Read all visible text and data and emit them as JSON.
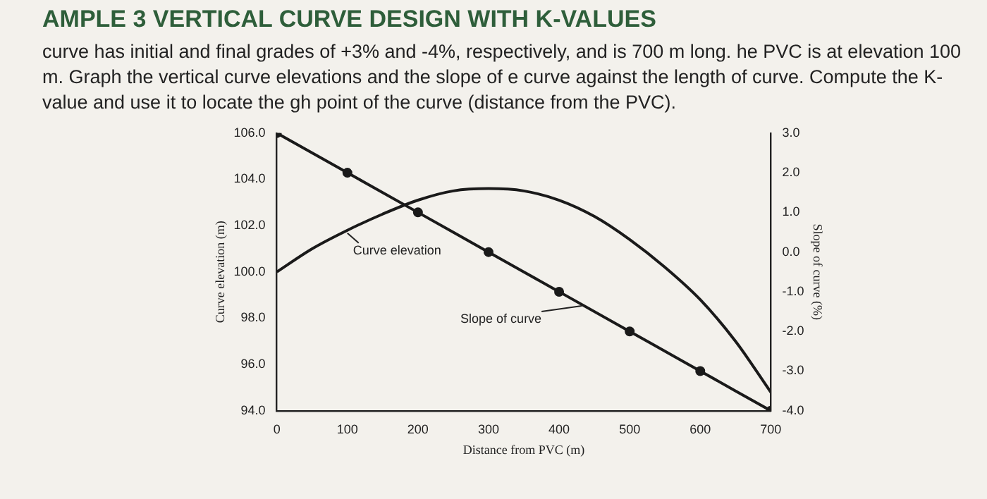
{
  "chart_data": {
    "type": "line",
    "title": "AMPLE 3 VERTICAL CURVE DESIGN WITH K-VALUES",
    "subtitle": "curve has initial and final grades of +3% and -4%, respectively, and is 700 m long. he PVC is at elevation 100 m. Graph the vertical curve elevations and the slope of e curve against the length of curve. Compute the K-value and use it to locate the gh point of the curve (distance from the PVC).",
    "xlabel": "Distance from PVC (m)",
    "ylabel": "Curve elevation (m)",
    "y2label": "Slope of curve (%)",
    "xlim": [
      0,
      700
    ],
    "xticks": [
      0,
      100,
      200,
      300,
      400,
      500,
      600,
      700
    ],
    "ylim": [
      94,
      106
    ],
    "yticks": [
      {
        "value": 94,
        "label": "94.0"
      },
      {
        "value": 96,
        "label": "96.0"
      },
      {
        "value": 98,
        "label": "98.0"
      },
      {
        "value": 100,
        "label": "100.0"
      },
      {
        "value": 102,
        "label": "102.0"
      },
      {
        "value": 104,
        "label": "104.0"
      },
      {
        "value": 106,
        "label": "106.0"
      }
    ],
    "y2lim": [
      -4,
      3
    ],
    "y2ticks": [
      {
        "value": -4,
        "label": "-4.0"
      },
      {
        "value": -3,
        "label": "-3.0"
      },
      {
        "value": -2,
        "label": "-2.0"
      },
      {
        "value": -1,
        "label": "-1.0"
      },
      {
        "value": 0,
        "label": "0.0"
      },
      {
        "value": 1,
        "label": "1.0"
      },
      {
        "value": 2,
        "label": "2.0"
      },
      {
        "value": 3,
        "label": "3.0"
      }
    ],
    "grid": false,
    "series": [
      {
        "name": "Curve elevation",
        "color": "#1a1a1a",
        "marker": "none",
        "x": [
          0,
          50,
          100,
          150,
          200,
          250,
          300,
          350,
          400,
          450,
          500,
          550,
          600,
          650,
          700
        ],
        "values": [
          100,
          101,
          101.8,
          102.5,
          103.1,
          103.5,
          103.6,
          103.5,
          103.1,
          102.4,
          101.4,
          100.2,
          98.8,
          97,
          94.8
        ]
      },
      {
        "name": "Slope of curve",
        "color": "#1a1a1a",
        "marker": "circle",
        "axis": "y2",
        "x": [
          0,
          100,
          200,
          300,
          400,
          500,
          600,
          700
        ],
        "values": [
          3,
          2,
          1,
          0,
          -1,
          -2,
          -3,
          -4
        ]
      }
    ]
  }
}
